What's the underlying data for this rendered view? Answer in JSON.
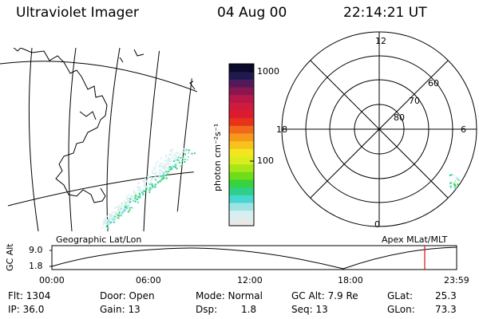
{
  "header": {
    "instrument": "Ultraviolet Imager",
    "date": "04 Aug 00",
    "time": "22:14:21 UT"
  },
  "colorbar": {
    "unit_label": "photon cm⁻²s⁻¹",
    "tick_1000": "1000",
    "tick_100": "100",
    "colors": [
      "#e8e8e8",
      "#d7efef",
      "#9ee3e3",
      "#46d7d0",
      "#2ecf8a",
      "#36d33e",
      "#6fdd1a",
      "#a8e61a",
      "#d8ec1e",
      "#f4e61e",
      "#f8c21c",
      "#f7981b",
      "#f16a1c",
      "#e8331c",
      "#dd1b2e",
      "#cf1b3d",
      "#b71848",
      "#8a1650",
      "#531a5b",
      "#1e1a4d",
      "#0a0a2a"
    ]
  },
  "polar_plot": {
    "mlt_12": "12",
    "mlt_18": "18",
    "mlt_6": "6",
    "mlt_0": "0",
    "lat_60": "60",
    "lat_70": "70",
    "lat_80": "80"
  },
  "labels": {
    "geo": "Geographic Lat/Lon",
    "apex": "Apex MLat/MLT"
  },
  "timeline": {
    "ylabel": "GC Alt",
    "y_hi": "9.0",
    "y_lo": "1.8",
    "x_ticks": [
      "00:00",
      "06:00",
      "12:00",
      "18:00",
      "23:59"
    ],
    "current_marker_color": "#e01010"
  },
  "info": {
    "flt": "Flt: 1304",
    "ip": "IP: 36.0",
    "door": "Door: Open",
    "gain": "Gain: 13",
    "mode": "Mode: Normal",
    "dsp_label": "Dsp:",
    "dsp_value": "1.8",
    "gcalt": "GC Alt: 7.9 Re",
    "seq": "Seq: 13",
    "glat_label": "GLat:",
    "glat_value": "25.3",
    "glon_label": "GLon:",
    "glon_value": "73.3"
  }
}
